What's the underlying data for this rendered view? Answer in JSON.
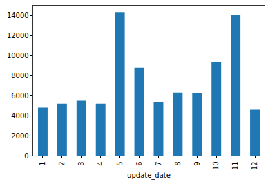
{
  "chart_data": {
    "type": "bar",
    "x_label": "update_date",
    "categories": [
      "1",
      "2",
      "3",
      "4",
      "5",
      "6",
      "7",
      "8",
      "9",
      "10",
      "11",
      "12"
    ],
    "values": [
      4800,
      5200,
      5500,
      5200,
      14300,
      8800,
      5350,
      6300,
      6250,
      9350,
      14050,
      4600
    ],
    "color": "#1f77b4",
    "ylim": [
      0,
      15000
    ],
    "yticks": [
      0,
      2000,
      4000,
      6000,
      8000,
      10000,
      12000,
      14000
    ],
    "grid": false
  }
}
